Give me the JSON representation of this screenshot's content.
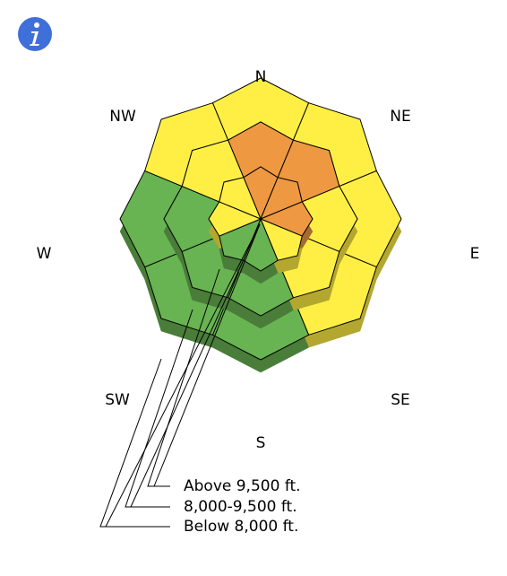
{
  "directions": [
    "N",
    "NE",
    "E",
    "SE",
    "S",
    "SW",
    "W",
    "NW"
  ],
  "bands": [
    {
      "label": "Below 8,000 ft.",
      "colors": [
        "#ffef45",
        "#ffef45",
        "#ffef45",
        "#ffef45",
        "#68b352",
        "#68b352",
        "#68b352",
        "#ffef45"
      ]
    },
    {
      "label": "8,000-9,500 ft.",
      "colors": [
        "#ee9841",
        "#ee9841",
        "#ffef45",
        "#ffef45",
        "#68b352",
        "#68b352",
        "#68b352",
        "#ffef45"
      ]
    },
    {
      "label": "Above 9,500 ft.",
      "colors": [
        "#ee9841",
        "#ee9841",
        "#ee9841",
        "#ffef45",
        "#68b352",
        "#68b352",
        "#ffef45",
        "#ffef45"
      ]
    }
  ]
}
